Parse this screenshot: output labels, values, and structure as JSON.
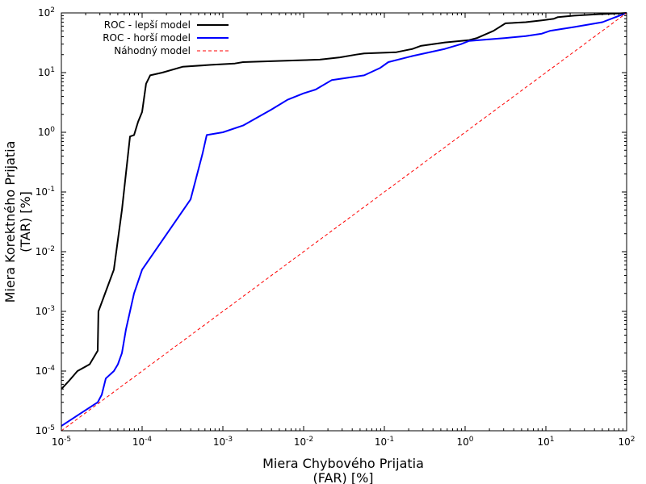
{
  "chart_data": {
    "type": "line",
    "title": "",
    "xlabel_lines": [
      "Miera Chybového Prijatia",
      "(FAR) [%]"
    ],
    "ylabel_lines": [
      "Miera Korektného Prijatia",
      "(TAR) [%]"
    ],
    "xscale": "log",
    "yscale": "log",
    "xlim": [
      1e-05,
      100
    ],
    "ylim": [
      1e-05,
      100
    ],
    "x_ticks": [
      1e-05,
      0.0001,
      0.001,
      0.01,
      0.1,
      1,
      10,
      100
    ],
    "y_ticks": [
      1e-05,
      0.0001,
      0.001,
      0.01,
      0.1,
      1,
      10,
      100
    ],
    "tick_base": "10",
    "tick_exponents": [
      "-5",
      "-4",
      "-3",
      "-2",
      "-1",
      "0",
      "1",
      "2"
    ],
    "grid": false,
    "legend_position": "top-left",
    "series": [
      {
        "name": "ROC - lepší model",
        "color": "#000000",
        "style": "solid",
        "points": [
          [
            1e-05,
            5e-05
          ],
          [
            1.26e-05,
            7e-05
          ],
          [
            1.58e-05,
            0.0001
          ],
          [
            2.24e-05,
            0.00013
          ],
          [
            2.82e-05,
            0.00022
          ],
          [
            2.88e-05,
            0.001
          ],
          [
            4.47e-05,
            0.005
          ],
          [
            5.62e-05,
            0.05
          ],
          [
            7.08e-05,
            0.85
          ],
          [
            7.94e-05,
            0.9
          ],
          [
            8.91e-05,
            1.5
          ],
          [
            0.0001,
            2.2
          ],
          [
            0.000112,
            6.5
          ],
          [
            0.000126,
            9.0
          ],
          [
            0.000178,
            10.0
          ],
          [
            0.000316,
            12.5
          ],
          [
            0.000708,
            13.5
          ],
          [
            0.00141,
            14.2
          ],
          [
            0.00178,
            15.0
          ],
          [
            0.00794,
            16.0
          ],
          [
            0.0159,
            16.5
          ],
          [
            0.0282,
            18.0
          ],
          [
            0.0447,
            20.0
          ],
          [
            0.0562,
            21.0
          ],
          [
            0.141,
            22.0
          ],
          [
            0.224,
            25.0
          ],
          [
            0.282,
            28.0
          ],
          [
            0.562,
            32.0
          ],
          [
            1.12,
            35.0
          ],
          [
            1.41,
            38.0
          ],
          [
            2.24,
            50.0
          ],
          [
            3.16,
            67.0
          ],
          [
            5.62,
            70.0
          ],
          [
            8.91,
            75.0
          ],
          [
            12.6,
            80.0
          ],
          [
            14.1,
            85.0
          ],
          [
            22.4,
            90.0
          ],
          [
            44.7,
            95.0
          ],
          [
            79.4,
            98.0
          ],
          [
            100,
            100
          ]
        ]
      },
      {
        "name": "ROC - horší model",
        "color": "#0000ff",
        "style": "solid",
        "points": [
          [
            1e-05,
            1.2e-05
          ],
          [
            1.78e-05,
            2e-05
          ],
          [
            2.82e-05,
            3e-05
          ],
          [
            3.16e-05,
            4e-05
          ],
          [
            3.55e-05,
            7.5e-05
          ],
          [
            4.47e-05,
            0.0001
          ],
          [
            5.01e-05,
            0.00013
          ],
          [
            5.62e-05,
            0.0002
          ],
          [
            6.31e-05,
            0.0005
          ],
          [
            7.08e-05,
            0.001
          ],
          [
            7.94e-05,
            0.002
          ],
          [
            0.0001,
            0.005
          ],
          [
            0.000398,
            0.075
          ],
          [
            0.000562,
            0.45
          ],
          [
            0.000631,
            0.9
          ],
          [
            0.001,
            1.0
          ],
          [
            0.00178,
            1.3
          ],
          [
            0.00398,
            2.4
          ],
          [
            0.00631,
            3.5
          ],
          [
            0.01,
            4.5
          ],
          [
            0.0141,
            5.2
          ],
          [
            0.0224,
            7.5
          ],
          [
            0.0562,
            9.0
          ],
          [
            0.0891,
            12.0
          ],
          [
            0.112,
            15.0
          ],
          [
            0.224,
            19.0
          ],
          [
            0.562,
            25.0
          ],
          [
            0.891,
            30.0
          ],
          [
            1.12,
            34.0
          ],
          [
            3.16,
            38.0
          ],
          [
            5.62,
            41.0
          ],
          [
            8.91,
            45.0
          ],
          [
            11.2,
            50.0
          ],
          [
            22.4,
            58.0
          ],
          [
            50.1,
            70.0
          ],
          [
            100,
            100
          ]
        ]
      },
      {
        "name": "Náhodný model",
        "color": "#ff0000",
        "style": "dashed",
        "points": [
          [
            1e-05,
            1e-05
          ],
          [
            100,
            100
          ]
        ]
      }
    ]
  }
}
